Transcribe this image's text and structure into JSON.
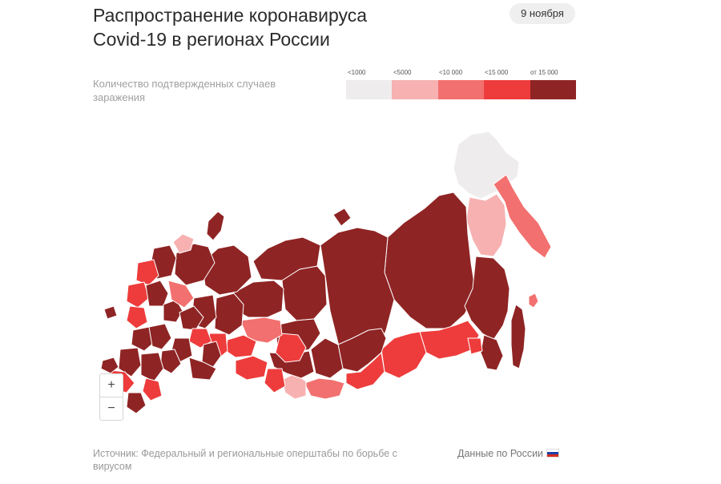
{
  "title": {
    "line1": "Распространение коронавируса",
    "line2": "Covid-19 в регионах России"
  },
  "date_badge": "9 ноября",
  "legend": {
    "description": "Количество подтвержденных случаев заражения",
    "items": [
      {
        "label": "<1000",
        "color": "#efeced"
      },
      {
        "label": "<5000",
        "color": "#f7b1b1"
      },
      {
        "label": "<10 000",
        "color": "#f2706f"
      },
      {
        "label": "<15 000",
        "color": "#ee3c3c"
      },
      {
        "label": "от 15 000",
        "color": "#8f2424"
      }
    ]
  },
  "map": {
    "background": "#ffffff",
    "border_color": "#ffffff"
  },
  "zoom": {
    "in": "+",
    "out": "−"
  },
  "footer": {
    "source": "Источник: Федеральный и региональные оперштабы по борьбе с вирусом",
    "russia_link": "Данные по России"
  },
  "flag_colors": [
    "#ffffff",
    "#1c3faa",
    "#d52b1e"
  ]
}
